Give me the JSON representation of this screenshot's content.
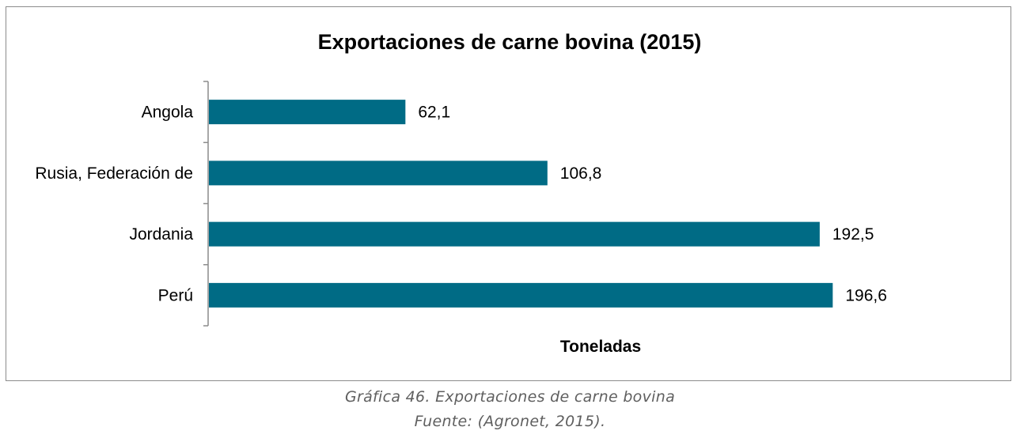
{
  "chart_data": {
    "type": "bar",
    "orientation": "horizontal",
    "title": "Exportaciones de carne bovina (2015)",
    "xlabel": "Toneladas",
    "ylabel": "",
    "categories": [
      "Angola",
      "Rusia, Federación de",
      "Jordania",
      "Perú"
    ],
    "values": [
      62.1,
      106.8,
      192.5,
      196.6
    ],
    "data_labels": [
      "62,1",
      "106,8",
      "192,5",
      "196,6"
    ],
    "xlim": [
      0,
      200
    ],
    "grid": false,
    "legend": "none",
    "bar_color": "#006b85"
  },
  "caption": {
    "line1": "Gráfica 46. Exportaciones de carne bovina",
    "line2": "Fuente: (Agronet, 2015)."
  }
}
